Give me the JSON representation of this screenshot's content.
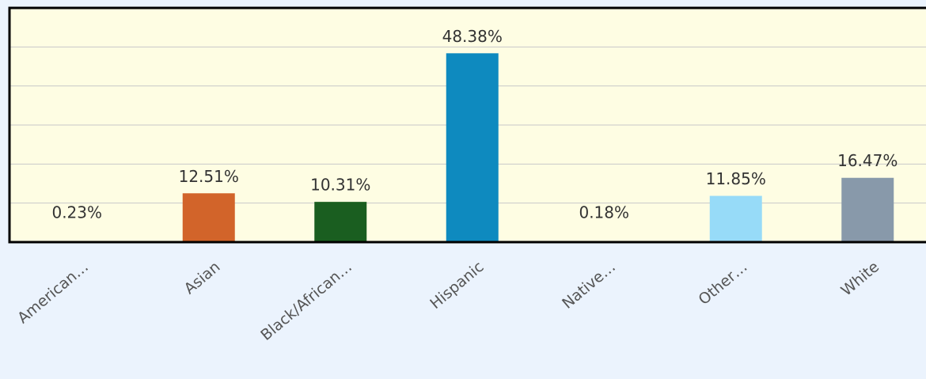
{
  "chart_data": {
    "type": "bar",
    "categories": [
      "American…",
      "Asian",
      "Black/African…",
      "Hispanic",
      "Native…",
      "Other…",
      "White"
    ],
    "values": [
      0.23,
      12.51,
      10.31,
      48.38,
      0.18,
      11.85,
      16.47
    ],
    "value_labels": [
      "0.23%",
      "12.51%",
      "10.31%",
      "48.38%",
      "0.18%",
      "11.85%",
      "16.47%"
    ],
    "colors": [
      "#b5651d",
      "#d2642a",
      "#1a5e20",
      "#0e8abf",
      "#6a3d9a",
      "#97dbf8",
      "#8899aa"
    ],
    "ylim": [
      0,
      60
    ],
    "yticks": [
      0,
      10,
      20,
      30,
      40,
      50,
      60
    ],
    "grid": true
  }
}
